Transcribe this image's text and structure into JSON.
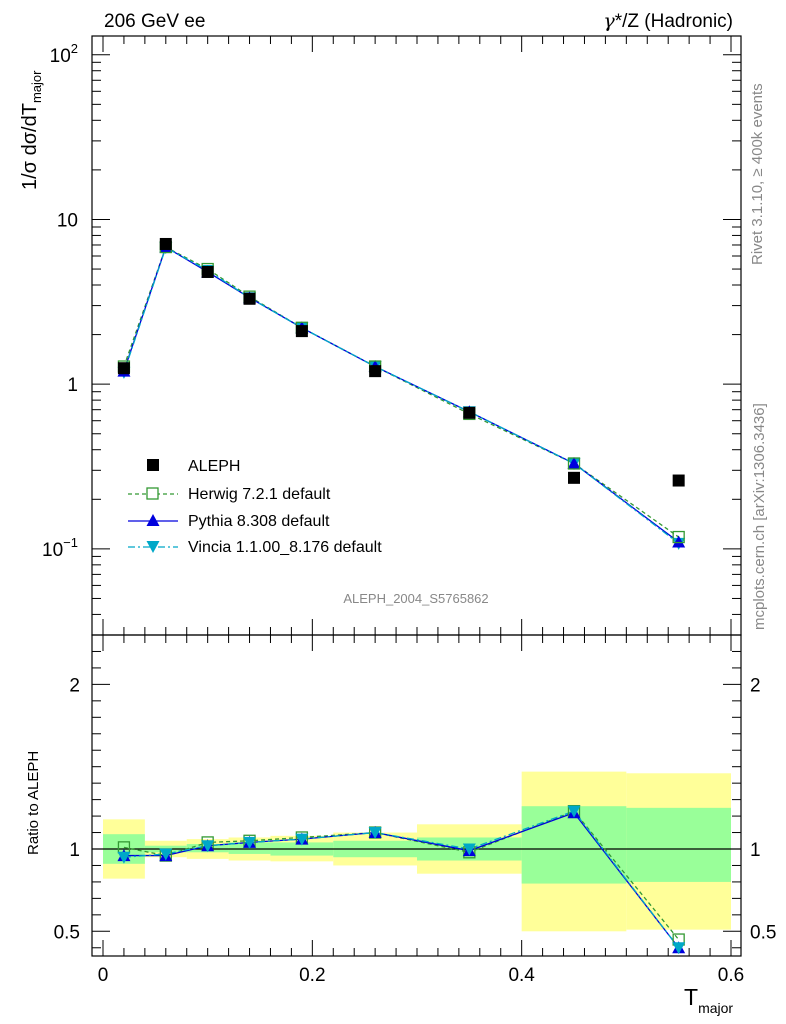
{
  "header": {
    "left": "206 GeV ee",
    "right_prefix": "γ",
    "right_suffix": "*/Z (Hadronic)"
  },
  "side_text": {
    "rivet": "Rivet 3.1.10, ≥ 400k events",
    "mcplots": "mcplots.cern.ch [arXiv:1306.3436]"
  },
  "watermark": "ALEPH_2004_S5765862",
  "colors": {
    "data": "#000000",
    "herwig": "#339933",
    "pythia": "#0000dd",
    "vincia": "#00a8c8",
    "band_inner": "#99ff99",
    "band_outer": "#ffff99"
  },
  "chart_data": [
    {
      "type": "line",
      "name": "main",
      "yscale": "log",
      "xlim": [
        0,
        0.6
      ],
      "ylim": [
        0.03,
        130
      ],
      "ylabel_main": "1/σ  dσ/dT",
      "ylabel_sub": "major",
      "y_ticks": [
        {
          "value": 100,
          "base": "10",
          "exp": "2"
        },
        {
          "value": 10,
          "base": "10",
          "exp": ""
        },
        {
          "value": 1,
          "base": "1",
          "exp": ""
        },
        {
          "value": 0.1,
          "base": "10",
          "exp": "−1"
        }
      ],
      "x": [
        0.02,
        0.06,
        0.1,
        0.14,
        0.19,
        0.26,
        0.35,
        0.45,
        0.55
      ],
      "series": [
        {
          "name": "ALEPH",
          "key": "data",
          "values": [
            1.25,
            7.1,
            4.8,
            3.3,
            2.1,
            1.2,
            0.67,
            0.27,
            0.26
          ]
        },
        {
          "name": "Herwig 7.2.1 default",
          "key": "herwig",
          "values": [
            1.28,
            6.8,
            5.0,
            3.4,
            2.2,
            1.28,
            0.66,
            0.33,
            0.118
          ]
        },
        {
          "name": "Pythia 8.308 default",
          "key": "pythia",
          "values": [
            1.2,
            6.8,
            4.8,
            3.35,
            2.2,
            1.28,
            0.68,
            0.33,
            0.11
          ]
        },
        {
          "name": "Vincia 1.1.00_8.176 default",
          "key": "vincia",
          "values": [
            1.18,
            6.75,
            4.9,
            3.35,
            2.2,
            1.28,
            0.68,
            0.33,
            0.108
          ]
        }
      ]
    },
    {
      "type": "line",
      "name": "ratio",
      "xlim": [
        0,
        0.6
      ],
      "ylim": [
        0.35,
        2.3
      ],
      "ylabel": "Ratio to ALEPH",
      "xlabel_main": "T",
      "xlabel_sub": "major",
      "x_ticks": [
        "0",
        "0.2",
        "0.4",
        "0.6"
      ],
      "y_ticks": [
        "2",
        "1",
        "0.5"
      ],
      "bins": [
        {
          "x0": 0.0,
          "x1": 0.04,
          "inner": [
            0.91,
            1.09
          ],
          "outer": [
            0.82,
            1.18
          ]
        },
        {
          "x0": 0.04,
          "x1": 0.08,
          "inner": [
            0.98,
            1.02
          ],
          "outer": [
            0.95,
            1.05
          ]
        },
        {
          "x0": 0.08,
          "x1": 0.12,
          "inner": [
            0.98,
            1.03
          ],
          "outer": [
            0.94,
            1.06
          ]
        },
        {
          "x0": 0.12,
          "x1": 0.16,
          "inner": [
            0.97,
            1.04
          ],
          "outer": [
            0.93,
            1.07
          ]
        },
        {
          "x0": 0.16,
          "x1": 0.22,
          "inner": [
            0.96,
            1.04
          ],
          "outer": [
            0.925,
            1.08
          ]
        },
        {
          "x0": 0.22,
          "x1": 0.3,
          "inner": [
            0.95,
            1.05
          ],
          "outer": [
            0.9,
            1.1
          ]
        },
        {
          "x0": 0.3,
          "x1": 0.4,
          "inner": [
            0.93,
            1.07
          ],
          "outer": [
            0.85,
            1.15
          ]
        },
        {
          "x0": 0.4,
          "x1": 0.5,
          "inner": [
            0.79,
            1.26
          ],
          "outer": [
            0.5,
            1.47
          ]
        },
        {
          "x0": 0.5,
          "x1": 0.6,
          "inner": [
            0.8,
            1.25
          ],
          "outer": [
            0.51,
            1.46
          ]
        }
      ],
      "x": [
        0.02,
        0.06,
        0.1,
        0.14,
        0.19,
        0.26,
        0.35,
        0.45,
        0.55
      ],
      "series": [
        {
          "name": "Herwig 7.2.1 default",
          "key": "herwig",
          "values": [
            1.01,
            0.96,
            1.04,
            1.05,
            1.07,
            1.1,
            0.98,
            1.23,
            0.45
          ]
        },
        {
          "name": "Pythia 8.308 default",
          "key": "pythia",
          "values": [
            0.96,
            0.96,
            1.02,
            1.04,
            1.06,
            1.1,
            0.99,
            1.22,
            0.4
          ]
        },
        {
          "name": "Vincia 1.1.00_8.176 default",
          "key": "vincia",
          "values": [
            0.95,
            0.97,
            1.02,
            1.04,
            1.06,
            1.1,
            1.0,
            1.23,
            0.4
          ]
        }
      ]
    }
  ]
}
